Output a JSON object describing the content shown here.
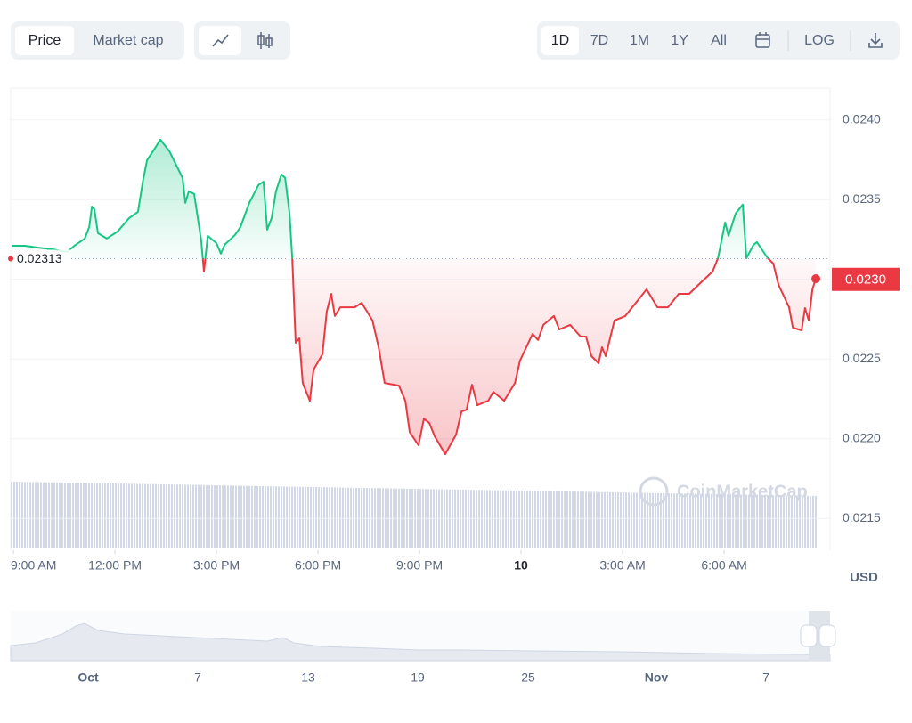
{
  "chart_data": {
    "type": "line",
    "x": [
      8.97,
      9.34,
      9.71,
      10.13,
      10.58,
      10.84,
      11.11,
      11.24,
      11.32,
      11.39,
      11.5,
      11.76,
      12.08,
      12.42,
      12.68,
      12.82,
      12.95,
      13.21,
      13.34,
      13.61,
      13.87,
      14.0,
      14.08,
      14.18,
      14.34,
      14.45,
      14.55,
      14.63,
      14.74,
      15.0,
      15.13,
      15.24,
      15.55,
      15.71,
      15.97,
      16.24,
      16.39,
      16.5,
      16.63,
      16.76,
      16.92,
      17.03,
      17.16,
      17.24,
      17.34,
      17.45,
      17.55,
      17.76,
      17.87,
      18.13,
      18.26,
      18.39,
      18.5,
      18.66,
      19.08,
      19.29,
      19.45,
      19.61,
      19.79,
      19.97,
      20.39,
      20.58,
      20.71,
      20.97,
      21.13,
      21.29,
      21.45,
      21.76,
      22.08,
      22.24,
      22.39,
      22.55,
      22.71,
      23.03,
      23.18,
      23.5,
      23.82,
      23.97,
      24.34,
      24.5,
      24.66,
      24.97,
      25.13,
      25.45,
      25.76,
      25.92,
      26.08,
      26.29,
      26.39,
      26.5,
      26.76,
      27.08,
      27.39,
      27.71,
      28.03,
      28.34,
      28.66,
      28.97,
      29.29,
      29.66,
      29.82,
      30.03,
      30.13,
      30.34,
      30.55,
      30.66,
      30.87,
      30.97,
      31.29,
      31.45,
      31.61,
      31.92,
      32.03,
      32.29,
      32.39,
      32.5,
      32.61,
      32.71
    ],
    "values": [
      0.023211,
      0.023211,
      0.0232,
      0.023189,
      0.023172,
      0.023217,
      0.023256,
      0.023329,
      0.023457,
      0.023441,
      0.02329,
      0.023256,
      0.023301,
      0.023385,
      0.023424,
      0.023608,
      0.023748,
      0.023832,
      0.023877,
      0.023804,
      0.023692,
      0.023636,
      0.02348,
      0.023553,
      0.023536,
      0.023385,
      0.023245,
      0.023049,
      0.023273,
      0.023228,
      0.023161,
      0.023217,
      0.023279,
      0.023329,
      0.02348,
      0.023592,
      0.023614,
      0.023312,
      0.023385,
      0.023553,
      0.023659,
      0.023636,
      0.023413,
      0.023127,
      0.022602,
      0.02263,
      0.02235,
      0.022238,
      0.022434,
      0.022529,
      0.022798,
      0.022909,
      0.02277,
      0.022825,
      0.022825,
      0.022853,
      0.022798,
      0.022742,
      0.022574,
      0.02235,
      0.022333,
      0.022238,
      0.022042,
      0.021959,
      0.022126,
      0.022098,
      0.022014,
      0.021903,
      0.022026,
      0.022171,
      0.022182,
      0.022339,
      0.02221,
      0.022238,
      0.022294,
      0.022238,
      0.02235,
      0.02249,
      0.022658,
      0.022619,
      0.022714,
      0.02277,
      0.022686,
      0.022714,
      0.022641,
      0.022641,
      0.022518,
      0.022473,
      0.022574,
      0.022518,
      0.022742,
      0.02277,
      0.022853,
      0.022937,
      0.022825,
      0.022825,
      0.022909,
      0.022909,
      0.022976,
      0.023049,
      0.023133,
      0.023357,
      0.023273,
      0.023413,
      0.023469,
      0.023133,
      0.023217,
      0.023234,
      0.023133,
      0.0231,
      0.022965,
      0.022825,
      0.022697,
      0.02268,
      0.02282,
      0.022742,
      0.022937,
      0.023004
    ],
    "color_up": "#16c784",
    "color_down": "#ea3943",
    "baseline": 0.02313,
    "last_price": {
      "value": 0.023,
      "label": "0.0230"
    },
    "xlim": [
      8.92,
      33.13
    ],
    "xticks": [
      {
        "value": 9,
        "label": "9:00 AM"
      },
      {
        "value": 12,
        "label": "12:00 PM"
      },
      {
        "value": 15,
        "label": "3:00 PM"
      },
      {
        "value": 18,
        "label": "6:00 PM"
      },
      {
        "value": 21,
        "label": "9:00 PM"
      },
      {
        "value": 24,
        "label": "10"
      },
      {
        "value": 27,
        "label": "3:00 AM"
      },
      {
        "value": 30,
        "label": "6:00 AM"
      }
    ],
    "ylim": [
      0.0213,
      0.0242
    ],
    "yticks": [
      {
        "value": 0.0215,
        "label": "0.0215"
      },
      {
        "value": 0.022,
        "label": "0.0220"
      },
      {
        "value": 0.0225,
        "label": "0.0225"
      },
      {
        "value": 0.023,
        "label": "0.0230"
      },
      {
        "value": 0.0235,
        "label": "0.0235"
      },
      {
        "value": 0.024,
        "label": "0.0240"
      }
    ],
    "grid": true,
    "log_scale": false,
    "unit": "USD",
    "watermark": "CoinMarketCap"
  },
  "controls": {
    "tabs": [
      "Price",
      "Market cap"
    ],
    "ranges": [
      "1D",
      "7D",
      "1M",
      "1Y",
      "All"
    ],
    "log": "LOG"
  },
  "navigator": {
    "labels": [
      "Oct",
      "7",
      "13",
      "19",
      "25",
      "Nov",
      "7"
    ]
  }
}
